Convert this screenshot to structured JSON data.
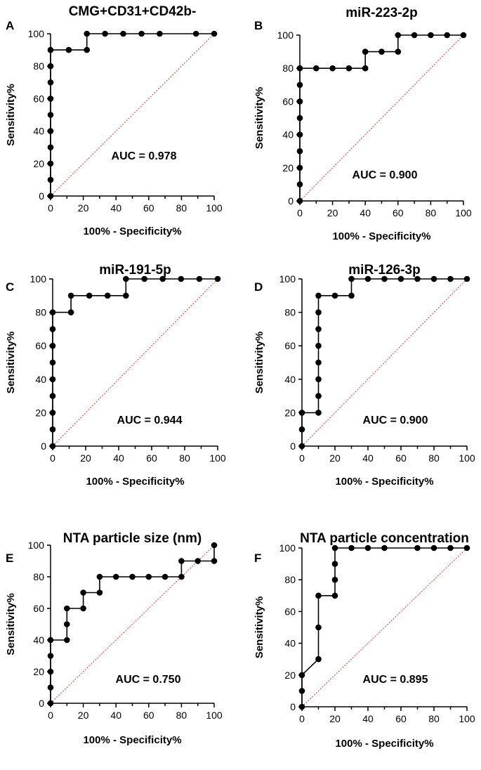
{
  "figure": {
    "description_free": true
  },
  "chart_data": [
    {
      "type": "line",
      "panel": "A",
      "title": "CMG+CD31+CD42b-",
      "xlabel": "100% - Specificity%",
      "ylabel": "Sensitivity%",
      "xlim": [
        0,
        100
      ],
      "ylim": [
        0,
        100
      ],
      "xticks": [
        0,
        20,
        40,
        60,
        80,
        100
      ],
      "yticks": [
        0,
        20,
        40,
        60,
        80,
        100
      ],
      "auc_text": "AUC = 0.978",
      "series": [
        {
          "name": "ROC",
          "marker": "circle",
          "x": [
            0,
            0,
            0,
            0,
            0,
            0,
            0,
            0,
            0,
            0,
            11.1,
            22.2,
            22.2,
            33.3,
            44.4,
            55.6,
            66.7,
            88.9,
            100
          ],
          "y": [
            0,
            10,
            20,
            30,
            40,
            50,
            60,
            70,
            80,
            90,
            90,
            90,
            100,
            100,
            100,
            100,
            100,
            100,
            100
          ]
        },
        {
          "name": "Reference",
          "x": [
            0,
            100
          ],
          "y": [
            0,
            100
          ]
        }
      ]
    },
    {
      "type": "line",
      "panel": "B",
      "title": "miR-223-2p",
      "xlabel": "100% - Specificity%",
      "ylabel": "Sensitivity%",
      "xlim": [
        0,
        100
      ],
      "ylim": [
        0,
        100
      ],
      "xticks": [
        0,
        20,
        40,
        60,
        80,
        100
      ],
      "yticks": [
        0,
        20,
        40,
        60,
        80,
        100
      ],
      "auc_text": "AUC = 0.900",
      "series": [
        {
          "name": "ROC",
          "marker": "circle",
          "x": [
            0,
            0,
            0,
            0,
            0,
            0,
            0,
            0,
            0,
            10,
            20,
            30,
            40,
            40,
            50,
            60,
            60,
            70,
            80,
            90,
            100
          ],
          "y": [
            0,
            10,
            20,
            30,
            40,
            50,
            60,
            70,
            80,
            80,
            80,
            80,
            80,
            90,
            90,
            90,
            100,
            100,
            100,
            100,
            100
          ]
        },
        {
          "name": "Reference",
          "x": [
            0,
            100
          ],
          "y": [
            0,
            100
          ]
        }
      ]
    },
    {
      "type": "line",
      "panel": "C",
      "title": "miR-191-5p",
      "xlabel": "100% - Specificity%",
      "ylabel": "Sensitivity%",
      "xlim": [
        0,
        100
      ],
      "ylim": [
        0,
        100
      ],
      "xticks": [
        0,
        20,
        40,
        60,
        80,
        100
      ],
      "yticks": [
        0,
        20,
        40,
        60,
        80,
        100
      ],
      "auc_text": "AUC = 0.944",
      "series": [
        {
          "name": "ROC",
          "marker": "circle",
          "x": [
            0,
            0,
            0,
            0,
            0,
            0,
            0,
            0,
            0,
            11.1,
            11.1,
            22.2,
            33.3,
            44.4,
            44.4,
            55.6,
            66.7,
            77.8,
            88.9,
            100
          ],
          "y": [
            0,
            10,
            20,
            30,
            40,
            50,
            60,
            70,
            80,
            80,
            90,
            90,
            90,
            90,
            100,
            100,
            100,
            100,
            100,
            100
          ]
        },
        {
          "name": "Reference",
          "x": [
            0,
            100
          ],
          "y": [
            0,
            100
          ]
        }
      ]
    },
    {
      "type": "line",
      "panel": "D",
      "title": "miR-126-3p",
      "xlabel": "100% - Specificity%",
      "ylabel": "Sensitivity%",
      "xlim": [
        0,
        100
      ],
      "ylim": [
        0,
        100
      ],
      "xticks": [
        0,
        20,
        40,
        60,
        80,
        100
      ],
      "yticks": [
        0,
        20,
        40,
        60,
        80,
        100
      ],
      "auc_text": "AUC = 0.900",
      "series": [
        {
          "name": "ROC",
          "marker": "circle",
          "x": [
            0,
            0,
            0,
            10,
            10,
            10,
            10,
            10,
            10,
            10,
            10,
            20,
            30,
            30,
            40,
            50,
            60,
            70,
            80,
            90,
            100
          ],
          "y": [
            0,
            10,
            20,
            20,
            30,
            40,
            50,
            60,
            70,
            80,
            90,
            90,
            90,
            100,
            100,
            100,
            100,
            100,
            100,
            100,
            100
          ]
        },
        {
          "name": "Reference",
          "x": [
            0,
            100
          ],
          "y": [
            0,
            100
          ]
        }
      ]
    },
    {
      "type": "line",
      "panel": "E",
      "title": "NTA particle size (nm)",
      "xlabel": "100% - Specificity%",
      "ylabel": "Sensitivity%",
      "xlim": [
        0,
        100
      ],
      "ylim": [
        0,
        100
      ],
      "xticks": [
        0,
        20,
        40,
        60,
        80,
        100
      ],
      "yticks": [
        0,
        20,
        40,
        60,
        80,
        100
      ],
      "auc_text": "AUC = 0.750",
      "series": [
        {
          "name": "ROC",
          "marker": "circle",
          "x": [
            0,
            0,
            0,
            0,
            0,
            10,
            10,
            10,
            20,
            20,
            30,
            30,
            40,
            50,
            60,
            70,
            80,
            80,
            90,
            100,
            100
          ],
          "y": [
            0,
            10,
            20,
            30,
            40,
            40,
            50,
            60,
            60,
            70,
            70,
            80,
            80,
            80,
            80,
            80,
            80,
            90,
            90,
            90,
            100
          ]
        },
        {
          "name": "Reference",
          "x": [
            0,
            100
          ],
          "y": [
            0,
            100
          ]
        }
      ]
    },
    {
      "type": "line",
      "panel": "F",
      "title": "NTA particle concentration",
      "xlabel": "100% - Specificity%",
      "ylabel": "Sensitivity%",
      "xlim": [
        0,
        100
      ],
      "ylim": [
        0,
        100
      ],
      "xticks": [
        0,
        20,
        40,
        60,
        80,
        100
      ],
      "yticks": [
        0,
        20,
        40,
        60,
        80,
        100
      ],
      "auc_text": "AUC = 0.895",
      "series": [
        {
          "name": "ROC",
          "marker": "circle",
          "x": [
            0,
            0,
            0,
            10,
            10,
            10,
            20,
            20,
            20,
            20,
            30,
            40,
            50,
            70,
            80,
            90,
            100
          ],
          "y": [
            0,
            10,
            20,
            30,
            50,
            70,
            70,
            80,
            90,
            100,
            100,
            100,
            100,
            100,
            100,
            100,
            100
          ]
        },
        {
          "name": "Reference",
          "x": [
            0,
            100
          ],
          "y": [
            0,
            100
          ]
        }
      ]
    }
  ],
  "colors": {
    "roc": "#000000",
    "reference": "#d93a2b",
    "axis": "#000000"
  }
}
